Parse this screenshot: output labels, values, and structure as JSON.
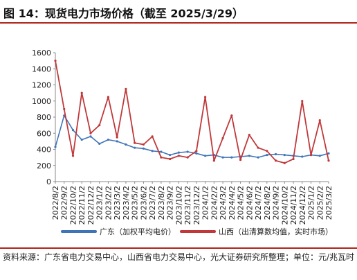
{
  "title": "图 14：现货电力市场价格（截至 2025/3/29）",
  "source": "资料来源：广东省电力交易中心，山西省电力交易中心，光大证券研究所整理；单位：元/兆瓦时",
  "colors": {
    "rule": "#b02418",
    "guangdong": "#3f74b8",
    "shanxi": "#c0383a"
  },
  "chart_data": {
    "type": "line",
    "y_ticks": [
      0,
      200,
      400,
      600,
      800,
      1000,
      1200,
      1400,
      1600
    ],
    "ylim": [
      0,
      1600
    ],
    "grid": false,
    "legend_position": "bottom",
    "categories": [
      "2022/8/2",
      "2022/9/2",
      "2022/10/2",
      "2022/11/2",
      "2022/12/2",
      "2023/1/2",
      "2023/2/2",
      "2023/3/2",
      "2023/4/2",
      "2023/5/2",
      "2023/6/2",
      "2023/7/2",
      "2023/8/2",
      "2023/9/2",
      "2023/10/2",
      "2023/11/2",
      "2023/12/2",
      "2024/1/2",
      "2024/2/2",
      "2024/3/2",
      "2024/4/2",
      "2024/5/2",
      "2024/6/2",
      "2024/7/2",
      "2024/8/2",
      "2024/9/2",
      "2024/10/2",
      "2024/11/2",
      "2024/12/2",
      "2025/1/2",
      "2025/2/2",
      "2025/3/2"
    ],
    "series": [
      {
        "name": "广东（加权平均电价）",
        "values": [
          430,
          820,
          640,
          520,
          560,
          470,
          520,
          500,
          460,
          420,
          410,
          380,
          370,
          330,
          360,
          370,
          350,
          320,
          330,
          300,
          300,
          310,
          320,
          300,
          330,
          340,
          330,
          320,
          310,
          330,
          320,
          350
        ]
      },
      {
        "name": "山西（出清算数均值，实时市场）",
        "values": [
          1500,
          900,
          320,
          1100,
          600,
          700,
          1050,
          550,
          1150,
          480,
          460,
          560,
          300,
          280,
          320,
          300,
          380,
          1050,
          260,
          540,
          820,
          270,
          580,
          420,
          380,
          260,
          230,
          280,
          1000,
          330,
          760,
          260
        ]
      }
    ]
  }
}
